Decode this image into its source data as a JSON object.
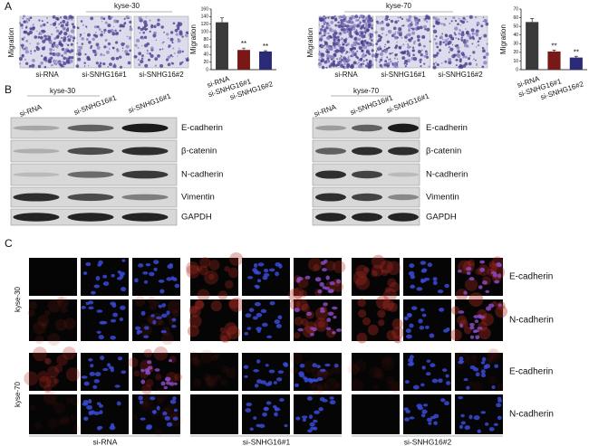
{
  "panel_letters": [
    "A",
    "B",
    "C"
  ],
  "panel_a": [
    {
      "cell_line": "kyse-30",
      "y_label": "Migration",
      "image_labels": [
        "si-RNA",
        "si-SNHG16#1",
        "si-SNHG16#2"
      ]
    },
    {
      "cell_line": "kyse-70",
      "y_label": "Migration",
      "image_labels": [
        "si-RNA",
        "si-SNHG16#1",
        "si-SNHG16#2"
      ]
    }
  ],
  "chart_data": [
    {
      "type": "bar",
      "y_label": "Migration",
      "categories": [
        "si-RNA",
        "si-SNHG16#1",
        "si-SNHG16#2"
      ],
      "values": [
        125,
        52,
        48
      ],
      "errors": [
        12,
        5,
        2
      ],
      "colors": [
        "#3a3a3a",
        "#7a1818",
        "#2a2a78"
      ],
      "significance": [
        null,
        "**",
        "**"
      ],
      "ylim": [
        0,
        160
      ],
      "yticks": [
        0,
        20,
        40,
        60,
        80,
        100,
        120,
        140,
        160
      ]
    },
    {
      "type": "bar",
      "y_label": "Migration",
      "categories": [
        "si-RNA",
        "si-SNHG16#1",
        "si-SNHG16#2"
      ],
      "values": [
        55,
        21,
        14
      ],
      "errors": [
        4,
        1.5,
        1.5
      ],
      "colors": [
        "#3a3a3a",
        "#7a1818",
        "#2a2a78"
      ],
      "significance": [
        null,
        "**",
        "**"
      ],
      "ylim": [
        0,
        70
      ],
      "yticks": [
        0,
        10,
        20,
        30,
        40,
        50,
        60,
        70
      ]
    }
  ],
  "panel_b": [
    {
      "cell_line": "kyse-30",
      "lanes": [
        "si-RNA",
        "si-SNHG16#1",
        "si-SNHG16#1"
      ],
      "proteins": [
        "E-cadherin",
        "β-catenin",
        "N-cadherin",
        "Vimentin",
        "GAPDH"
      ]
    },
    {
      "cell_line": "kyse-70",
      "lanes": [
        "si-RNA",
        "si-SNHG16#1",
        "si-SNHG16#1"
      ],
      "proteins": [
        "E-cadherin",
        "β-catenin",
        "N-cadherin",
        "Vimentin",
        "GAPDH"
      ]
    }
  ],
  "panel_c": {
    "cell_lines": [
      "kyse-30",
      "kyse-70"
    ],
    "stains": [
      "E-cadherin",
      "N-cadherin"
    ],
    "groups": [
      "si-RNA",
      "si-SNHG16#1",
      "si-SNHG16#2"
    ]
  }
}
